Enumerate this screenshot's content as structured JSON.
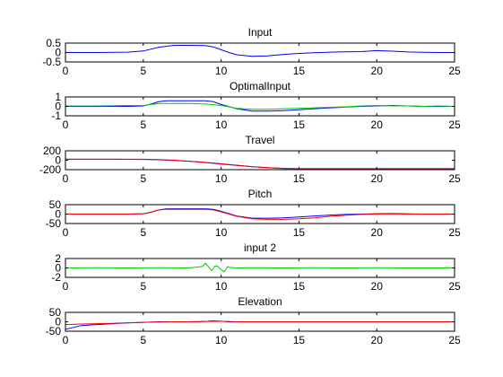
{
  "figure": {
    "background": "#ffffff",
    "axes_color": "#000000",
    "colors": {
      "blue": "#0000ff",
      "green": "#00cc00",
      "red": "#ff0000"
    }
  },
  "chart_data": [
    {
      "type": "line",
      "title": "Input",
      "xlim": [
        0,
        25
      ],
      "ylim": [
        -0.5,
        0.5
      ],
      "xticks": [
        "0",
        "5",
        "10",
        "15",
        "20",
        "25"
      ],
      "yticks": [
        "0.5",
        "0",
        "-0.5"
      ],
      "series": [
        {
          "color": "#0000ff",
          "x": [
            0,
            2,
            4,
            5,
            6,
            7,
            8,
            9,
            9.5,
            10,
            10.5,
            11,
            12,
            13,
            14,
            15,
            16,
            17,
            18,
            19,
            20,
            21,
            22,
            23,
            24,
            25
          ],
          "y": [
            0,
            0,
            0.02,
            0.08,
            0.28,
            0.38,
            0.38,
            0.37,
            0.3,
            0.15,
            0,
            -0.12,
            -0.2,
            -0.18,
            -0.1,
            -0.05,
            -0.01,
            0.02,
            0.04,
            0.05,
            0.1,
            0.07,
            0.03,
            0.01,
            0,
            0
          ]
        }
      ]
    },
    {
      "type": "line",
      "title": "OptimalInput",
      "xlim": [
        0,
        25
      ],
      "ylim": [
        -1,
        1
      ],
      "xticks": [
        "0",
        "5",
        "10",
        "15",
        "20",
        "25"
      ],
      "yticks": [
        "1",
        "0",
        "-1"
      ],
      "series": [
        {
          "color": "#0000ff",
          "x": [
            0,
            4,
            5,
            5.5,
            6,
            6.5,
            7,
            8,
            9,
            9.5,
            10,
            11,
            12,
            13,
            14,
            15,
            16,
            17,
            18,
            19,
            20,
            21,
            22,
            23,
            24,
            25
          ],
          "y": [
            0,
            0,
            0.05,
            0.25,
            0.5,
            0.6,
            0.6,
            0.6,
            0.6,
            0.5,
            0.2,
            -0.25,
            -0.5,
            -0.5,
            -0.45,
            -0.35,
            -0.25,
            -0.15,
            -0.08,
            0,
            0.05,
            0.1,
            0.05,
            0,
            0,
            0
          ]
        },
        {
          "color": "#00cc00",
          "x": [
            0,
            2,
            4,
            5,
            6,
            7,
            8,
            9,
            10,
            11,
            12,
            13,
            14,
            15,
            16,
            17,
            18,
            19,
            20,
            21,
            22,
            23,
            24,
            25
          ],
          "y": [
            0.05,
            0.05,
            0.1,
            0.1,
            0.3,
            0.3,
            0.3,
            0.25,
            0.1,
            -0.2,
            -0.3,
            -0.3,
            -0.25,
            -0.2,
            -0.15,
            -0.1,
            -0.05,
            0.05,
            0.1,
            0.05,
            0.05,
            0,
            0.05,
            0
          ]
        }
      ]
    },
    {
      "type": "line",
      "title": "Travel",
      "xlim": [
        0,
        25
      ],
      "ylim": [
        -200,
        200
      ],
      "xticks": [
        "0",
        "5",
        "10",
        "15",
        "20",
        "25"
      ],
      "yticks": [
        "200",
        "0",
        "-200"
      ],
      "series": [
        {
          "color": "#0000ff",
          "x": [
            0,
            3,
            5,
            6,
            7,
            8,
            9,
            10,
            11,
            12,
            13,
            14,
            15,
            17,
            19,
            21,
            23,
            25
          ],
          "y": [
            20,
            20,
            18,
            10,
            -5,
            -25,
            -50,
            -80,
            -110,
            -140,
            -160,
            -175,
            -180,
            -180,
            -180,
            -180,
            -180,
            -180
          ]
        },
        {
          "color": "#ff0000",
          "x": [
            0,
            3,
            5,
            6,
            7,
            8,
            9,
            10,
            11,
            12,
            13,
            14,
            15,
            17,
            19,
            21,
            23,
            25
          ],
          "y": [
            20,
            20,
            20,
            15,
            0,
            -20,
            -45,
            -75,
            -105,
            -135,
            -158,
            -172,
            -180,
            -180,
            -180,
            -180,
            -180,
            -180
          ]
        }
      ]
    },
    {
      "type": "line",
      "title": "Pitch",
      "xlim": [
        0,
        25
      ],
      "ylim": [
        -50,
        50
      ],
      "xticks": [
        "0",
        "5",
        "10",
        "15",
        "20",
        "25"
      ],
      "yticks": [
        "50",
        "0",
        "-50"
      ],
      "series": [
        {
          "color": "#0000ff",
          "x": [
            0,
            4,
            5,
            5.5,
            6,
            6.5,
            7,
            8,
            9,
            9.5,
            10,
            11,
            12,
            13,
            14,
            15,
            16,
            17,
            18,
            19,
            20,
            21,
            22,
            23,
            24,
            25
          ],
          "y": [
            0,
            0,
            2,
            10,
            22,
            28,
            28,
            28,
            28,
            25,
            15,
            -10,
            -22,
            -22,
            -20,
            -15,
            -10,
            -5,
            -2,
            0,
            2,
            3,
            1,
            0,
            0,
            0
          ]
        },
        {
          "color": "#ff0000",
          "x": [
            0,
            4,
            5,
            5.5,
            6,
            6.5,
            7,
            8,
            9,
            9.5,
            10,
            11,
            12,
            13,
            14,
            15,
            16,
            17,
            18,
            19,
            20,
            21,
            22,
            23,
            24,
            25
          ],
          "y": [
            0,
            0,
            2,
            10,
            22,
            25,
            25,
            25,
            25,
            22,
            12,
            -12,
            -25,
            -28,
            -28,
            -25,
            -20,
            -12,
            -6,
            -2,
            0,
            1,
            0,
            0,
            0,
            0
          ]
        }
      ]
    },
    {
      "type": "line",
      "title": "input 2",
      "xlim": [
        0,
        25
      ],
      "ylim": [
        -2,
        2
      ],
      "xticks": [
        "0",
        "5",
        "10",
        "15",
        "20",
        "25"
      ],
      "yticks": [
        "2",
        "0",
        "-2"
      ],
      "series": [
        {
          "color": "#00cc00",
          "x": [
            0,
            2,
            4,
            6,
            8,
            8.8,
            9,
            9.2,
            9.4,
            9.6,
            9.8,
            10,
            10.2,
            10.4,
            10.6,
            11,
            12,
            14,
            16,
            18,
            20,
            22,
            24,
            25
          ],
          "y": [
            0,
            0.05,
            0,
            0.05,
            0,
            0.3,
            1.0,
            0.2,
            -0.6,
            0.4,
            0.3,
            -0.4,
            -0.8,
            0.2,
            0.1,
            0,
            0.05,
            0,
            0.05,
            0,
            0.05,
            0,
            0,
            0
          ]
        }
      ]
    },
    {
      "type": "line",
      "title": "Elevation",
      "xlim": [
        0,
        25
      ],
      "ylim": [
        -50,
        50
      ],
      "xticks": [
        "0",
        "5",
        "10",
        "15",
        "20",
        "25"
      ],
      "yticks": [
        "50",
        "0",
        "-50"
      ],
      "series": [
        {
          "color": "#0000ff",
          "x": [
            0,
            0.5,
            1,
            2,
            3,
            4,
            5,
            6,
            7,
            8,
            9,
            9.5,
            10,
            10.5,
            11,
            12,
            14,
            16,
            18,
            20,
            22,
            24
          ],
          "y": [
            -40,
            -30,
            -20,
            -15,
            -10,
            -6,
            -3,
            0,
            0,
            0,
            2,
            5,
            3,
            0,
            0,
            0,
            0,
            0,
            0,
            0,
            0,
            0
          ]
        },
        {
          "color": "#ff0000",
          "x": [
            0,
            1,
            2,
            3,
            4,
            5,
            6,
            7,
            8,
            9,
            10,
            11,
            12,
            15,
            20,
            25
          ],
          "y": [
            -15,
            -12,
            -10,
            -8,
            -5,
            -3,
            -1,
            0,
            0,
            2,
            3,
            0,
            0,
            0,
            0,
            0
          ]
        }
      ]
    }
  ]
}
